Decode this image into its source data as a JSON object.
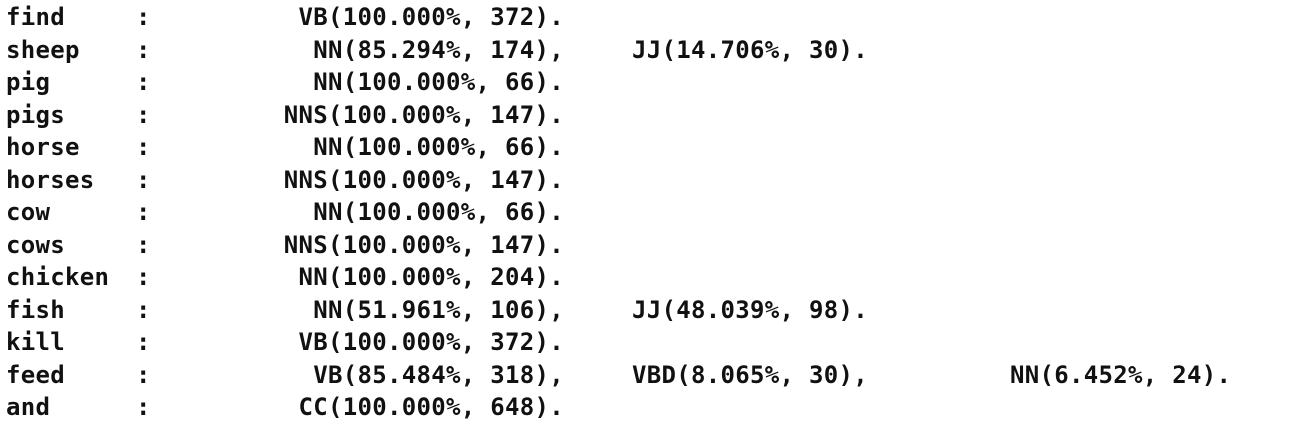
{
  "rows": [
    {
      "word": "find",
      "colon": ":",
      "tags": [
        "VB(100.000%, 372)."
      ]
    },
    {
      "word": "sheep",
      "colon": ":",
      "tags": [
        "NN(85.294%, 174),",
        "JJ(14.706%, 30)."
      ]
    },
    {
      "word": "pig",
      "colon": ":",
      "tags": [
        "NN(100.000%, 66)."
      ]
    },
    {
      "word": "pigs",
      "colon": ":",
      "tags": [
        "NNS(100.000%, 147)."
      ]
    },
    {
      "word": "horse",
      "colon": ":",
      "tags": [
        "NN(100.000%, 66)."
      ]
    },
    {
      "word": "horses",
      "colon": ":",
      "tags": [
        "NNS(100.000%, 147)."
      ]
    },
    {
      "word": "cow",
      "colon": ":",
      "tags": [
        "NN(100.000%, 66)."
      ]
    },
    {
      "word": "cows",
      "colon": ":",
      "tags": [
        "NNS(100.000%, 147)."
      ]
    },
    {
      "word": "chicken",
      "colon": ":",
      "tags": [
        "NN(100.000%, 204)."
      ]
    },
    {
      "word": "fish",
      "colon": ":",
      "tags": [
        "NN(51.961%, 106),",
        "JJ(48.039%, 98)."
      ]
    },
    {
      "word": "kill",
      "colon": ":",
      "tags": [
        "VB(100.000%, 372)."
      ]
    },
    {
      "word": "feed",
      "colon": ":",
      "tags": [
        "VB(85.484%, 318),",
        "VBD(8.065%, 30),",
        "NN(6.452%, 24)."
      ]
    },
    {
      "word": "and",
      "colon": ":",
      "tags": [
        "CC(100.000%, 648)."
      ]
    }
  ]
}
